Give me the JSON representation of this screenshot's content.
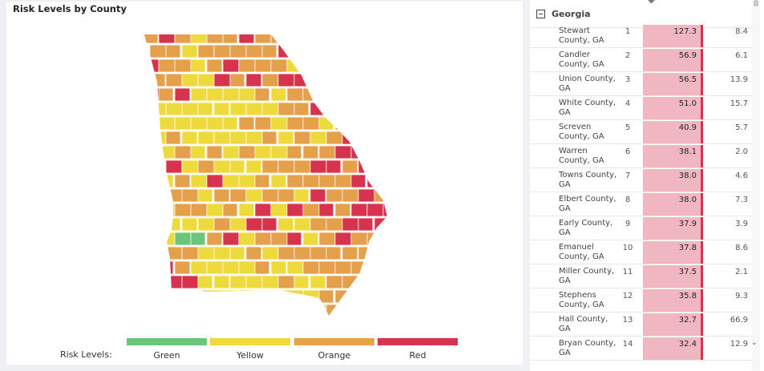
{
  "map": {
    "title": "Risk Levels by County",
    "legend_title": "Risk Levels:",
    "legend": [
      {
        "label": "Green",
        "color": "#6cc67a"
      },
      {
        "label": "Yellow",
        "color": "#f2d83a"
      },
      {
        "label": "Orange",
        "color": "#e8a24a"
      },
      {
        "label": "Red",
        "color": "#d8344f"
      }
    ],
    "colors": {
      "green": "#6cc67a",
      "yellow": "#eeda3c",
      "orange": "#e4a04b",
      "red": "#d6334f",
      "border": "#ffffff"
    }
  },
  "table": {
    "group": "Georgia",
    "rows": [
      {
        "county": "Stewart County, GA",
        "rank": "1",
        "value": "127.3",
        "other": "8.4"
      },
      {
        "county": "Candler County, GA",
        "rank": "2",
        "value": "56.9",
        "other": "6.1"
      },
      {
        "county": "Union County, GA",
        "rank": "3",
        "value": "56.5",
        "other": "13.9"
      },
      {
        "county": "White County, GA",
        "rank": "4",
        "value": "51.0",
        "other": "15.7"
      },
      {
        "county": "Screven County, GA",
        "rank": "5",
        "value": "40.9",
        "other": "5.7"
      },
      {
        "county": "Warren County, GA",
        "rank": "6",
        "value": "38.1",
        "other": "2.0"
      },
      {
        "county": "Towns County, GA",
        "rank": "7",
        "value": "38.0",
        "other": "4.6"
      },
      {
        "county": "Elbert County, GA",
        "rank": "8",
        "value": "38.0",
        "other": "7.3"
      },
      {
        "county": "Early County, GA",
        "rank": "9",
        "value": "37.9",
        "other": "3.9"
      },
      {
        "county": "Emanuel County, GA",
        "rank": "10",
        "value": "37.8",
        "other": "8.6"
      },
      {
        "county": "Miller County, GA",
        "rank": "11",
        "value": "37.5",
        "other": "2.1"
      },
      {
        "county": "Stephens County, GA",
        "rank": "12",
        "value": "35.8",
        "other": "9.3"
      },
      {
        "county": "Hall County, GA",
        "rank": "13",
        "value": "32.7",
        "other": "66.9"
      },
      {
        "county": "Bryan County, GA",
        "rank": "14",
        "value": "32.4",
        "other": "12.9"
      }
    ]
  }
}
